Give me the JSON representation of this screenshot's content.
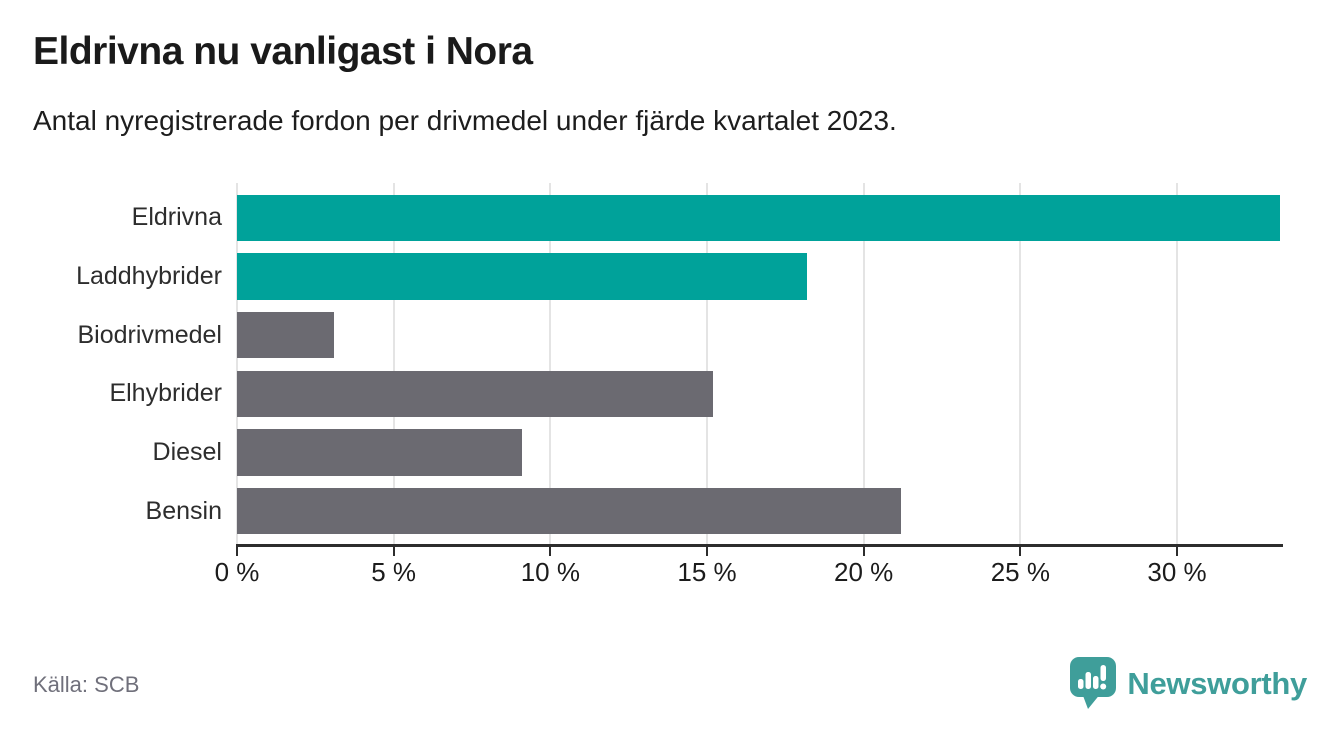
{
  "header": {
    "title": "Eldrivna nu vanligast i Nora",
    "subtitle": "Antal nyregistrerade fordon per drivmedel under fjärde kvartalet 2023."
  },
  "chart_data": {
    "type": "bar",
    "orientation": "horizontal",
    "title": "Eldrivna nu vanligast i Nora",
    "subtitle": "Antal nyregistrerade fordon per drivmedel under fjärde kvartalet 2023.",
    "categories": [
      "Eldrivna",
      "Laddhybrider",
      "Biodrivmedel",
      "Elhybrider",
      "Diesel",
      "Bensin"
    ],
    "values": [
      33.3,
      18.2,
      3.1,
      15.2,
      9.1,
      21.2
    ],
    "unit": "%",
    "bar_colors": [
      "#00a29a",
      "#00a29a",
      "#6b6a71",
      "#6b6a71",
      "#6b6a71",
      "#6b6a71"
    ],
    "xlim": [
      0,
      33.35
    ],
    "x_ticks": [
      0,
      5,
      10,
      15,
      20,
      25,
      30
    ],
    "x_tick_suffix": " %",
    "xlabel": "",
    "ylabel": "",
    "grid": "vertical gridlines on",
    "legend": "none"
  },
  "footer": {
    "source": "Källa: SCB",
    "brand_name": "Newsworthy"
  },
  "colors": {
    "accent_teal": "#00a29a",
    "bar_gray": "#6b6a71",
    "gridline": "#e4e4e4",
    "axis": "#2d2d2d",
    "text_dark": "#1a1a1a",
    "source_text": "#70707b",
    "brand_teal": "#3f9e9a"
  }
}
